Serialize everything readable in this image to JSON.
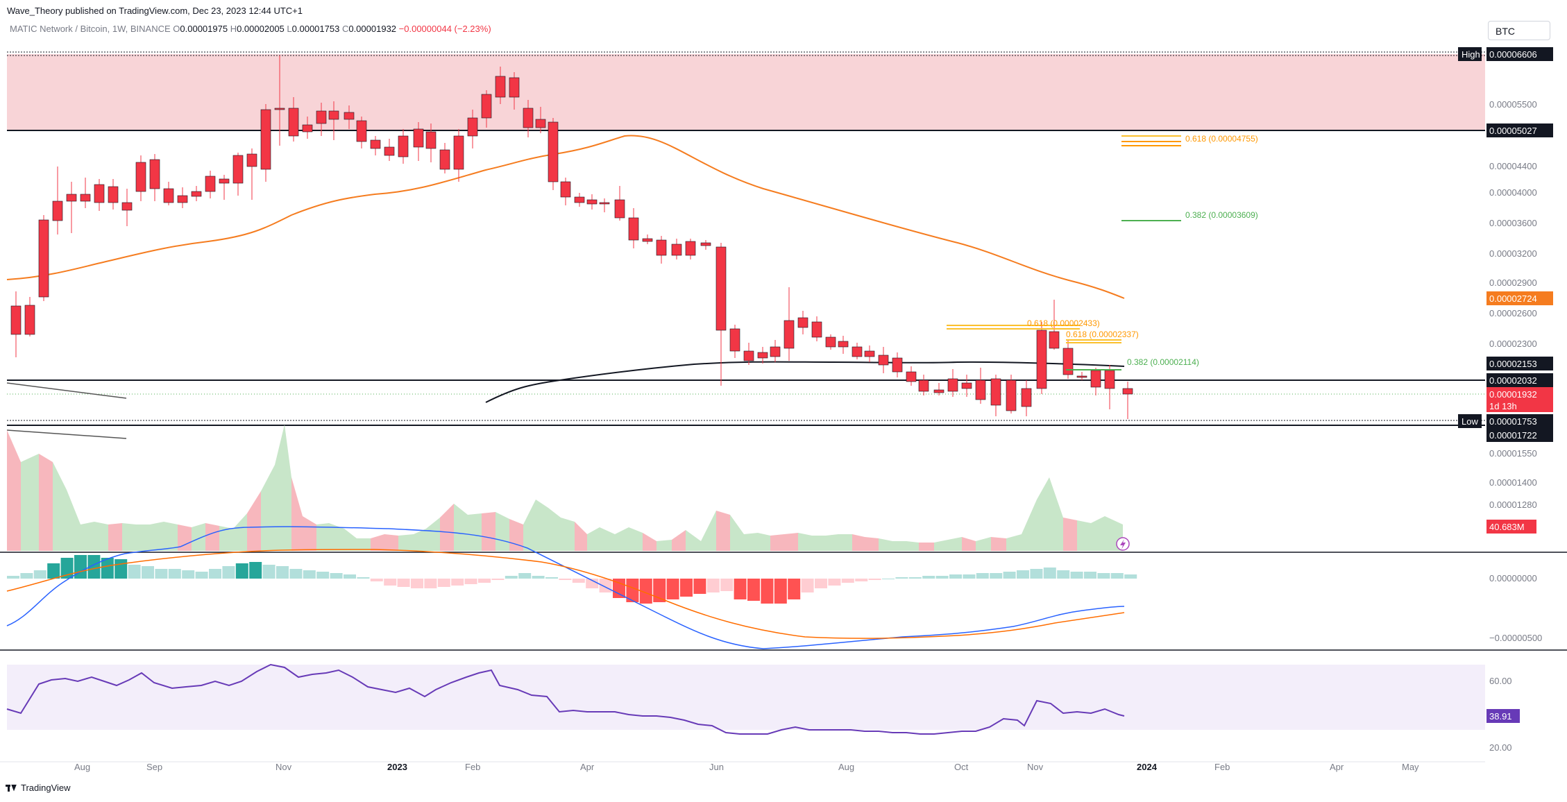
{
  "publisher_text": "Wave_Theory published on TradingView.com, Dec 23, 2023 12:44 UTC+1",
  "legend": {
    "symbol": "MATIC Network / Bitcoin, 1W, BINANCE",
    "o_label": "O",
    "o_value": "0.00001975",
    "h_label": "H",
    "h_value": "0.00002005",
    "l_label": "L",
    "l_value": "0.00001753",
    "c_label": "C",
    "c_value": "0.00001932",
    "change": "−0.00000044 (−2.23%)"
  },
  "currency_button": "BTC",
  "footer_brand": "TradingView",
  "colors": {
    "up": "#4caf50",
    "down": "#f23645",
    "ema": "#f57c1f",
    "macd": "#2962ff",
    "signal": "#ff6d00",
    "rsi": "#673ab7",
    "resistance_zone": "#f8d4d7",
    "fib_gold": "#fbc02d",
    "fib_orange": "#ff9800",
    "fib_green": "#4caf50"
  },
  "price_axis": {
    "ticks": [
      "0.00005500",
      "0.00004400",
      "0.00004000",
      "0.00003600",
      "0.00003200",
      "0.00002900",
      "0.00002600",
      "0.00002300",
      "0.00001550",
      "0.00001400",
      "0.00001280"
    ],
    "badges": [
      {
        "key": "high",
        "label": "High",
        "value": "0.00006606"
      },
      {
        "key": "zone-top",
        "value": "0.00005027"
      },
      {
        "key": "ema",
        "value": "0.00002724"
      },
      {
        "key": "sma",
        "value": "0.00002153"
      },
      {
        "key": "support",
        "value": "0.00002032"
      },
      {
        "key": "last",
        "value": "0.00001932",
        "countdown": "1d 13h"
      },
      {
        "key": "low",
        "label": "Low",
        "value": "0.00001753"
      },
      {
        "key": "support2",
        "value": "0.00001722"
      }
    ],
    "volume_value": "40.683M"
  },
  "macd_axis": {
    "ticks": [
      "0.00000000",
      "−0.00000500"
    ]
  },
  "rsi_axis": {
    "ticks": [
      "60.00",
      "20.00"
    ],
    "value": "38.91"
  },
  "time_axis": {
    "labels": [
      "Aug",
      "Sep",
      "Nov",
      "2023",
      "Feb",
      "Apr",
      "Jun",
      "Aug",
      "Oct",
      "Nov",
      "2024",
      "Feb",
      "Apr",
      "May"
    ]
  },
  "fib_labels": [
    {
      "key": "fib-618-upper",
      "text": "0.618 (0.00004755)"
    },
    {
      "key": "fib-382-upper",
      "text": "0.382 (0.00003609)"
    },
    {
      "key": "fib-618-mid-a",
      "text": "0.618 (0.00002433)"
    },
    {
      "key": "fib-618-mid-b",
      "text": "0.618 (0.00002337)"
    },
    {
      "key": "fib-382-lower",
      "text": "0.382 (0.00002114)"
    }
  ]
}
